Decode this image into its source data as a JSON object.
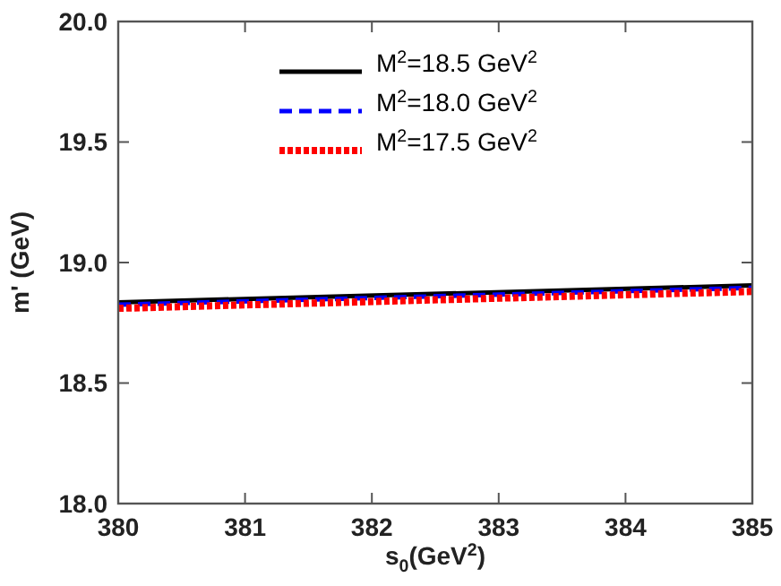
{
  "chart_data": {
    "type": "line",
    "xlabel": "s$_{0}$(GeV$^{2}$)",
    "ylabel": "m' (GeV)",
    "xlim": [
      380,
      385
    ],
    "xticks": [
      380,
      381,
      382,
      383,
      384,
      385
    ],
    "ylim": [
      18,
      20
    ],
    "yticks": [
      {
        "value": 18,
        "label": "18.0"
      },
      {
        "value": 18.5,
        "label": "18.5"
      },
      {
        "value": 19,
        "label": "19.0"
      },
      {
        "value": 19.5,
        "label": "19.5"
      },
      {
        "value": 20,
        "label": "20.0"
      }
    ],
    "x": [
      380,
      385
    ],
    "grid": false,
    "legend": "top",
    "marker": "none",
    "series": [
      {
        "name": "M$^{2}$=18.5 GeV$^{2}$",
        "color": "#000000",
        "line_style": "solid",
        "values": [
          18.835,
          18.905
        ]
      },
      {
        "name": "M$^{2}$=18.0 GeV$^{2}$",
        "color": "#0000ff",
        "line_style": "dashed",
        "values": [
          18.825,
          18.895
        ]
      },
      {
        "name": "M$^{2}$=17.5 GeV$^{2}$",
        "color": "#ff0000",
        "line_style": "dotted",
        "values": [
          18.81,
          18.88
        ]
      }
    ]
  }
}
